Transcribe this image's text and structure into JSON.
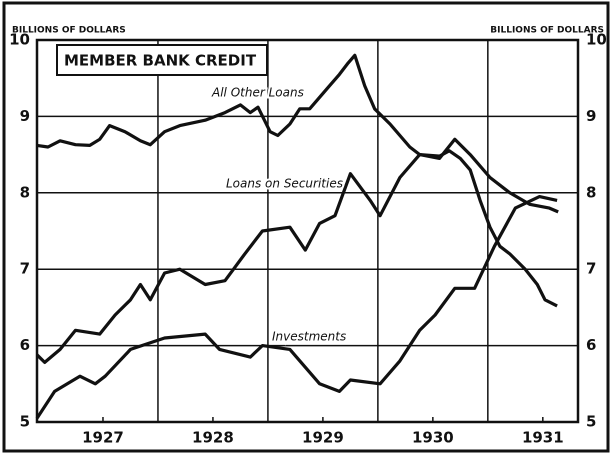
{
  "chart_data": {
    "type": "line",
    "title": "MEMBER BANK CREDIT",
    "ylabel": "BILLIONS OF DOLLARS",
    "y2label": "BILLIONS OF DOLLARS",
    "xlim": [
      1926.9,
      1931.82
    ],
    "xticks": [
      {
        "value": 1927.5,
        "label": "1927"
      },
      {
        "value": 1928.5,
        "label": "1928"
      },
      {
        "value": 1929.5,
        "label": "1929"
      },
      {
        "value": 1930.5,
        "label": "1930"
      },
      {
        "value": 1931.5,
        "label": "1931"
      }
    ],
    "xgrid": [
      1928,
      1929,
      1930,
      1931
    ],
    "ylim": [
      5,
      10
    ],
    "yticks": [
      5,
      6,
      7,
      8,
      9,
      10
    ],
    "y2lim": [
      5,
      10
    ],
    "y2ticks": [
      5,
      6,
      7,
      8,
      9,
      10
    ],
    "grid": true,
    "series": [
      {
        "name": "All Other Loans",
        "color": "#111111",
        "x": [
          1926.9,
          1927.0,
          1927.11,
          1927.25,
          1927.38,
          1927.47,
          1927.56,
          1927.7,
          1927.84,
          1927.93,
          1928.06,
          1928.2,
          1928.43,
          1928.61,
          1928.75,
          1928.84,
          1928.91,
          1929.02,
          1929.09,
          1929.2,
          1929.29,
          1929.38,
          1929.47,
          1929.56,
          1929.65,
          1929.73,
          1929.79,
          1929.88,
          1929.97,
          1930.11,
          1930.2,
          1930.29,
          1930.38,
          1930.56,
          1930.65,
          1930.75,
          1930.84,
          1930.93,
          1931.02,
          1931.11,
          1931.2,
          1931.34,
          1931.45,
          1931.52,
          1931.63
        ],
        "values": [
          8.62,
          8.6,
          8.68,
          8.63,
          8.62,
          8.7,
          8.88,
          8.8,
          8.68,
          8.63,
          8.8,
          8.88,
          8.95,
          9.05,
          9.15,
          9.05,
          9.12,
          8.8,
          8.75,
          8.9,
          9.1,
          9.1,
          9.25,
          9.4,
          9.55,
          9.7,
          9.8,
          9.4,
          9.1,
          8.9,
          8.75,
          8.6,
          8.5,
          8.48,
          8.55,
          8.45,
          8.3,
          7.9,
          7.55,
          7.3,
          7.2,
          7.0,
          6.8,
          6.6,
          6.52
        ]
      },
      {
        "name": "Loans on Securities",
        "color": "#111111",
        "x": [
          1926.9,
          1926.97,
          1927.11,
          1927.25,
          1927.47,
          1927.61,
          1927.75,
          1927.84,
          1927.93,
          1928.06,
          1928.2,
          1928.43,
          1928.61,
          1928.79,
          1928.95,
          1929.2,
          1929.34,
          1929.47,
          1929.61,
          1929.75,
          1929.93,
          1930.02,
          1930.2,
          1930.38,
          1930.56,
          1930.7,
          1930.84,
          1931.02,
          1931.2,
          1931.38,
          1931.56,
          1931.64
        ],
        "values": [
          5.88,
          5.78,
          5.95,
          6.2,
          6.15,
          6.4,
          6.6,
          6.8,
          6.6,
          6.95,
          7.0,
          6.8,
          6.85,
          7.2,
          7.5,
          7.55,
          7.25,
          7.6,
          7.7,
          8.25,
          7.9,
          7.7,
          8.2,
          8.5,
          8.45,
          8.7,
          8.5,
          8.2,
          8.0,
          7.85,
          7.8,
          7.75
        ]
      },
      {
        "name": "Investments",
        "color": "#111111",
        "x": [
          1926.9,
          1927.06,
          1927.29,
          1927.43,
          1927.52,
          1927.75,
          1928.06,
          1928.43,
          1928.56,
          1928.84,
          1928.95,
          1929.2,
          1929.47,
          1929.65,
          1929.75,
          1930.02,
          1930.2,
          1930.38,
          1930.52,
          1930.7,
          1930.88,
          1931.06,
          1931.25,
          1931.47,
          1931.63
        ],
        "values": [
          5.05,
          5.4,
          5.6,
          5.5,
          5.6,
          5.95,
          6.1,
          6.15,
          5.95,
          5.85,
          6.0,
          5.95,
          5.5,
          5.4,
          5.55,
          5.5,
          5.8,
          6.2,
          6.4,
          6.75,
          6.75,
          7.3,
          7.8,
          7.95,
          7.9
        ]
      }
    ]
  }
}
